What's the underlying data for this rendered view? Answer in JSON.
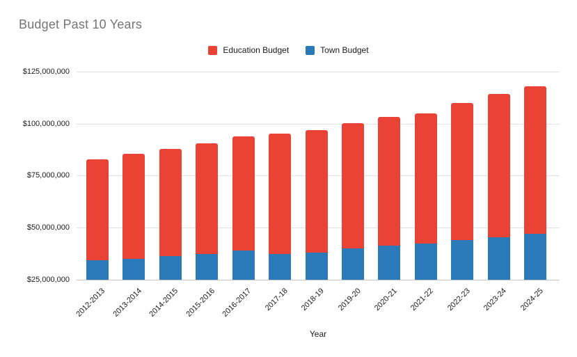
{
  "title": "Budget Past 10 Years",
  "legend": [
    {
      "label": "Education Budget",
      "color": "#ea4335"
    },
    {
      "label": "Town Budget",
      "color": "#2a7ab9"
    }
  ],
  "chart_data": {
    "type": "bar",
    "stacked": true,
    "title": "Budget Past 10 Years",
    "xlabel": "Year",
    "ylabel": "",
    "grid": true,
    "legend_position": "top",
    "ylim": [
      25000000,
      125000000
    ],
    "categories": [
      "2012-2013",
      "2013-2014",
      "2014-2015",
      "2015-2016",
      "2016-2017",
      "2017-18",
      "2018-19",
      "2019-20",
      "2020-21",
      "2021-22",
      "2022-23",
      "2023-24",
      "2024-25"
    ],
    "series": [
      {
        "name": "Town Budget",
        "color": "#2a7ab9",
        "values": [
          34500000,
          35000000,
          36500000,
          37500000,
          39000000,
          37500000,
          38000000,
          40000000,
          41500000,
          42500000,
          44000000,
          45500000,
          47000000
        ]
      },
      {
        "name": "Education Budget",
        "color": "#ea4335",
        "values": [
          48500000,
          50500000,
          51500000,
          53000000,
          55000000,
          58000000,
          59000000,
          60500000,
          62000000,
          62500000,
          66000000,
          69000000,
          71000000
        ]
      }
    ],
    "stacked_totals": [
      83000000,
      85500000,
      88000000,
      90500000,
      94000000,
      95500000,
      97000000,
      100500000,
      103500000,
      105000000,
      110000000,
      114500000,
      118000000
    ],
    "yticks": [
      {
        "value": 25000000,
        "label": "$25,000,000"
      },
      {
        "value": 50000000,
        "label": "$50,000,000"
      },
      {
        "value": 75000000,
        "label": "$75,000,000"
      },
      {
        "value": 100000000,
        "label": "$100,000,000"
      },
      {
        "value": 125000000,
        "label": "$125,000,000"
      }
    ]
  }
}
